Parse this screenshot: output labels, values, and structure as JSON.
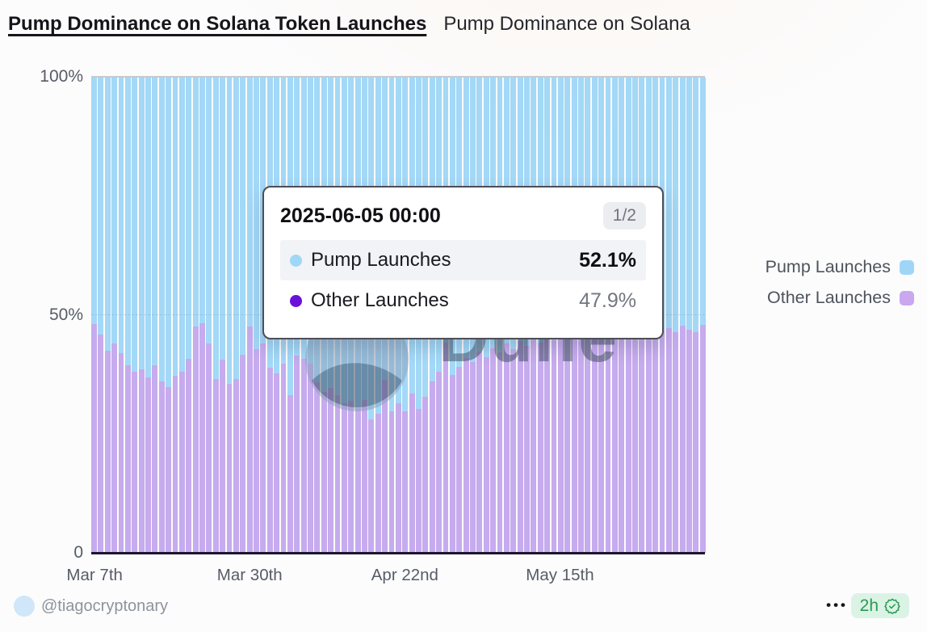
{
  "header": {
    "title": "Pump Dominance on Solana Token Launches",
    "subtitle": "Pump Dominance on Solana"
  },
  "chart_data": {
    "type": "bar",
    "stacked": true,
    "percent_stacked": true,
    "title": "Pump Dominance on Solana Token Launches",
    "xlabel": "",
    "ylabel": "",
    "ylim": [
      0,
      100
    ],
    "unit": "%",
    "grid": "horizontal-sparse",
    "legend_position": "right",
    "categories": [
      "2025-03-07",
      "2025-03-08",
      "2025-03-09",
      "2025-03-10",
      "2025-03-11",
      "2025-03-12",
      "2025-03-13",
      "2025-03-14",
      "2025-03-15",
      "2025-03-16",
      "2025-03-17",
      "2025-03-18",
      "2025-03-19",
      "2025-03-20",
      "2025-03-21",
      "2025-03-22",
      "2025-03-23",
      "2025-03-24",
      "2025-03-25",
      "2025-03-26",
      "2025-03-27",
      "2025-03-28",
      "2025-03-29",
      "2025-03-30",
      "2025-03-31",
      "2025-04-01",
      "2025-04-02",
      "2025-04-03",
      "2025-04-04",
      "2025-04-05",
      "2025-04-06",
      "2025-04-07",
      "2025-04-08",
      "2025-04-09",
      "2025-04-10",
      "2025-04-11",
      "2025-04-12",
      "2025-04-13",
      "2025-04-14",
      "2025-04-15",
      "2025-04-16",
      "2025-04-17",
      "2025-04-18",
      "2025-04-19",
      "2025-04-20",
      "2025-04-21",
      "2025-04-22",
      "2025-04-23",
      "2025-04-24",
      "2025-04-25",
      "2025-04-26",
      "2025-04-27",
      "2025-04-28",
      "2025-04-29",
      "2025-04-30",
      "2025-05-01",
      "2025-05-02",
      "2025-05-03",
      "2025-05-04",
      "2025-05-05",
      "2025-05-06",
      "2025-05-07",
      "2025-05-08",
      "2025-05-09",
      "2025-05-10",
      "2025-05-11",
      "2025-05-12",
      "2025-05-13",
      "2025-05-14",
      "2025-05-15",
      "2025-05-16",
      "2025-05-17",
      "2025-05-18",
      "2025-05-19",
      "2025-05-20",
      "2025-05-21",
      "2025-05-22",
      "2025-05-23",
      "2025-05-24",
      "2025-05-25",
      "2025-05-26",
      "2025-05-27",
      "2025-05-28",
      "2025-05-29",
      "2025-05-30",
      "2025-05-31",
      "2025-06-01",
      "2025-06-02",
      "2025-06-03",
      "2025-06-04",
      "2025-06-05"
    ],
    "series": [
      {
        "name": "Pump Launches",
        "color": "#a3d8f7",
        "values": [
          51.9,
          54.0,
          57.5,
          55.9,
          58.0,
          60.5,
          61.9,
          61.4,
          63.1,
          60.5,
          63.9,
          65.1,
          62.7,
          61.9,
          59.2,
          52.4,
          51.7,
          55.9,
          63.4,
          59.3,
          64.4,
          63.4,
          58.3,
          52.4,
          57.1,
          55.9,
          61.0,
          62.2,
          60.2,
          66.9,
          58.5,
          59.2,
          60.2,
          64.2,
          66.1,
          65.3,
          66.8,
          68.6,
          68.1,
          69.5,
          67.8,
          71.9,
          70.7,
          63.6,
          70.2,
          68.5,
          70.3,
          66.5,
          69.8,
          67.2,
          64.0,
          61.9,
          55.8,
          62.5,
          60.8,
          59.0,
          59.8,
          57.7,
          58.9,
          57.0,
          57.8,
          56.0,
          57.2,
          55.5,
          56.4,
          55.0,
          55.8,
          54.5,
          55.2,
          54.2,
          54.8,
          54.0,
          54.6,
          53.8,
          54.4,
          53.6,
          54.0,
          53.4,
          53.8,
          53.2,
          53.6,
          53.0,
          53.5,
          52.8,
          53.2,
          52.7,
          53.5,
          52.2,
          53.1,
          53.6,
          52.1
        ]
      },
      {
        "name": "Other Launches",
        "color": "#c6abee",
        "values": [
          48.1,
          46.0,
          42.5,
          44.1,
          42.0,
          39.5,
          38.1,
          38.6,
          36.9,
          39.5,
          36.1,
          34.9,
          37.3,
          38.1,
          40.8,
          47.6,
          48.3,
          44.1,
          36.6,
          40.7,
          35.6,
          36.6,
          41.7,
          47.6,
          42.9,
          44.1,
          39.0,
          37.8,
          39.8,
          33.1,
          41.5,
          40.8,
          39.8,
          35.8,
          33.9,
          34.7,
          33.2,
          31.4,
          31.9,
          30.5,
          32.2,
          28.1,
          29.3,
          36.4,
          29.8,
          31.5,
          29.7,
          33.5,
          30.2,
          32.8,
          36.0,
          38.1,
          44.2,
          37.5,
          39.2,
          41.0,
          40.2,
          42.3,
          41.1,
          43.0,
          42.2,
          44.0,
          42.8,
          44.5,
          43.6,
          45.0,
          44.2,
          45.5,
          44.8,
          45.8,
          45.2,
          46.0,
          45.4,
          46.2,
          45.6,
          46.4,
          46.0,
          46.6,
          46.2,
          46.8,
          46.4,
          47.0,
          46.5,
          47.2,
          46.8,
          47.3,
          46.5,
          47.8,
          46.9,
          46.4,
          47.9
        ]
      }
    ],
    "y_ticks": [
      {
        "value": 100,
        "label": "100%"
      },
      {
        "value": 50,
        "label": "50%"
      },
      {
        "value": 0,
        "label": "0"
      }
    ],
    "x_ticks": [
      {
        "index": 0,
        "label": "Mar 7th"
      },
      {
        "index": 23,
        "label": "Mar 30th"
      },
      {
        "index": 46,
        "label": "Apr 22nd"
      },
      {
        "index": 69,
        "label": "May 15th"
      }
    ]
  },
  "tooltip": {
    "title": "2025-06-05 00:00",
    "page": "1/2",
    "rows": [
      {
        "label": "Pump Launches",
        "value": "52.1%",
        "color": "#9fd7f7"
      },
      {
        "label": "Other Launches",
        "value": "47.9%",
        "color": "#6b10d8"
      }
    ]
  },
  "legend": {
    "items": [
      {
        "label": "Pump Launches",
        "color": "#9fd6f8"
      },
      {
        "label": "Other Launches",
        "color": "#c9a8ef"
      }
    ]
  },
  "watermark": {
    "text": "Dune"
  },
  "footer": {
    "handle": "@tiagocryptonary",
    "menu": "•••",
    "badge": {
      "text": "2h"
    }
  }
}
